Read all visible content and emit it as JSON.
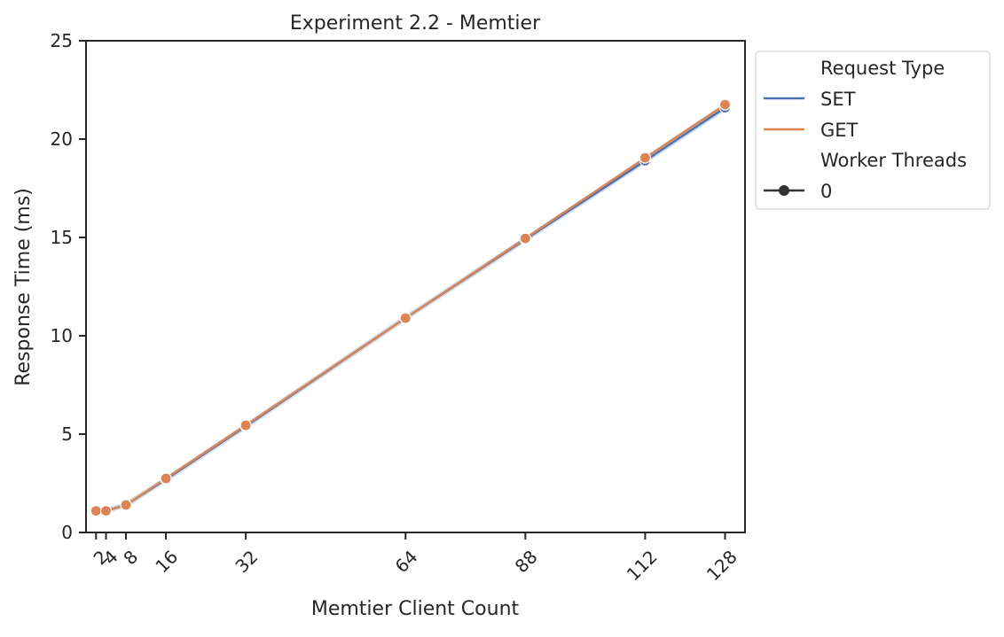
{
  "chart_data": {
    "type": "line",
    "title": "Experiment 2.2 - Memtier",
    "xlabel": "Memtier Client Count",
    "ylabel": "Response Time (ms)",
    "xlim": [
      0,
      132
    ],
    "ylim": [
      0,
      25
    ],
    "x_ticks": [
      2,
      4,
      8,
      16,
      32,
      64,
      88,
      112,
      128
    ],
    "x_tick_labels": [
      "2",
      "4",
      "8",
      "16",
      "32",
      "64",
      "88",
      "112",
      "128"
    ],
    "y_ticks": [
      0,
      5,
      10,
      15,
      20,
      25
    ],
    "y_tick_labels": [
      "0",
      "5",
      "10",
      "15",
      "20",
      "25"
    ],
    "grid": false,
    "x": [
      2,
      4,
      8,
      16,
      32,
      64,
      88,
      112,
      128
    ],
    "series": [
      {
        "name": "SET",
        "color": "#4c72b0",
        "values": [
          1.1,
          1.1,
          1.4,
          2.7,
          5.4,
          10.9,
          14.9,
          18.9,
          21.6
        ]
      },
      {
        "name": "GET",
        "color": "#dd8452",
        "values": [
          1.1,
          1.1,
          1.4,
          2.75,
          5.45,
          10.9,
          14.95,
          19.05,
          21.75
        ]
      }
    ],
    "legend": {
      "placement": "outside upper-right",
      "hue_title": "Request Type",
      "style_title": "Worker Threads",
      "style_entries": [
        {
          "label": "0",
          "color": "#333333",
          "marker": "circle"
        }
      ]
    }
  }
}
